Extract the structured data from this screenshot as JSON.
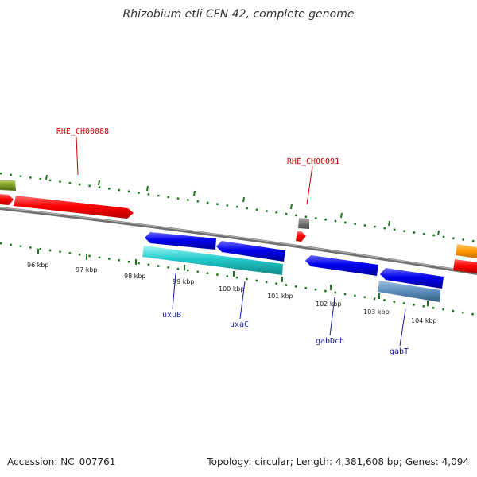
{
  "title": "Rhizobium etli CFN 42, complete genome",
  "footer": {
    "accession": "Accession: NC_007761",
    "stats": "Topology: circular; Length: 4,381,608 bp; Genes: 4,094"
  },
  "colors": {
    "backbone": "#7f7f7f",
    "tick": "#1a7a1a",
    "red_label": "#cc0000",
    "blue_label": "#1a1aaa"
  },
  "scale": {
    "unit": "kbp",
    "labels": [
      {
        "kbp": 96,
        "text": "96 kbp"
      },
      {
        "kbp": 97,
        "text": "97 kbp"
      },
      {
        "kbp": 98,
        "text": "98 kbp"
      },
      {
        "kbp": 99,
        "text": "99 kbp"
      },
      {
        "kbp": 100,
        "text": "100 kbp"
      },
      {
        "kbp": 101,
        "text": "101 kbp"
      },
      {
        "kbp": 102,
        "text": "102 kbp"
      },
      {
        "kbp": 103,
        "text": "103 kbp"
      },
      {
        "kbp": 104,
        "text": "104 kbp"
      }
    ]
  },
  "genes": [
    {
      "id": "g-olive",
      "color": "olive-green"
    },
    {
      "id": "g-red-left",
      "color": "red"
    },
    {
      "id": "g-red-long",
      "color": "red"
    },
    {
      "id": "g-grey-small",
      "color": "grey"
    },
    {
      "id": "g-red-small",
      "color": "red"
    },
    {
      "id": "g-orange",
      "color": "orange"
    },
    {
      "id": "g-red-right",
      "color": "red"
    },
    {
      "id": "g-blue-1",
      "color": "blue"
    },
    {
      "id": "g-blue-2",
      "color": "blue"
    },
    {
      "id": "g-cyan",
      "color": "cyan"
    },
    {
      "id": "g-blue-3",
      "color": "blue"
    },
    {
      "id": "g-blue-4",
      "color": "blue"
    },
    {
      "id": "g-steel",
      "color": "steel-blue"
    }
  ],
  "labels": [
    {
      "id": "RHE_CH00088",
      "text": "RHE_CH00088",
      "color": "red"
    },
    {
      "id": "RHE_CH00091",
      "text": "RHE_CH00091",
      "color": "red"
    },
    {
      "id": "uxuB",
      "text": "uxuB",
      "color": "blue"
    },
    {
      "id": "uxaC",
      "text": "uxaC",
      "color": "blue"
    },
    {
      "id": "gabDch",
      "text": "gabDch",
      "color": "blue"
    },
    {
      "id": "gabT",
      "text": "gabT",
      "color": "blue"
    }
  ]
}
